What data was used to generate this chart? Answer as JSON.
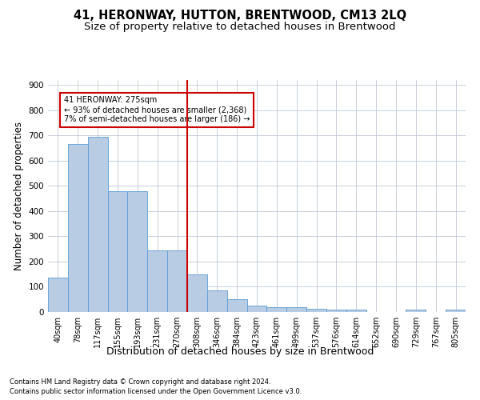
{
  "title": "41, HERONWAY, HUTTON, BRENTWOOD, CM13 2LQ",
  "subtitle": "Size of property relative to detached houses in Brentwood",
  "xlabel": "Distribution of detached houses by size in Brentwood",
  "ylabel": "Number of detached properties",
  "footer_line1": "Contains HM Land Registry data © Crown copyright and database right 2024.",
  "footer_line2": "Contains public sector information licensed under the Open Government Licence v3.0.",
  "bar_labels": [
    "40sqm",
    "78sqm",
    "117sqm",
    "155sqm",
    "193sqm",
    "231sqm",
    "270sqm",
    "308sqm",
    "346sqm",
    "384sqm",
    "423sqm",
    "461sqm",
    "499sqm",
    "537sqm",
    "576sqm",
    "614sqm",
    "652sqm",
    "690sqm",
    "729sqm",
    "767sqm",
    "805sqm"
  ],
  "bar_values": [
    135,
    665,
    695,
    480,
    480,
    245,
    245,
    148,
    87,
    50,
    25,
    20,
    18,
    12,
    8,
    8,
    0,
    0,
    8,
    0,
    10
  ],
  "bar_color": "#b8cce4",
  "bar_edge_color": "#5b9bd5",
  "reference_line_x": 6.5,
  "annotation_text_line1": "41 HERONWAY: 275sqm",
  "annotation_text_line2": "← 93% of detached houses are smaller (2,368)",
  "annotation_text_line3": "7% of semi-detached houses are larger (186) →",
  "annotation_box_color": "#cc0000",
  "ylim": [
    0,
    920
  ],
  "yticks": [
    0,
    100,
    200,
    300,
    400,
    500,
    600,
    700,
    800,
    900
  ],
  "background_color": "#ffffff",
  "grid_color": "#c0c8d8",
  "title_fontsize": 10.5,
  "subtitle_fontsize": 9.5,
  "axis_label_fontsize": 8.5,
  "tick_fontsize": 7.5,
  "footer_fontsize": 6.0
}
